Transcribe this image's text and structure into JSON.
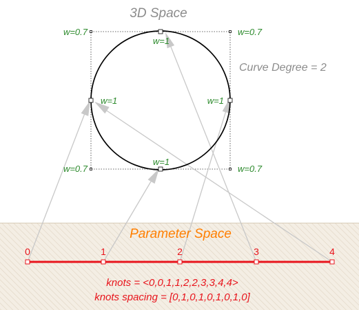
{
  "space_3d": {
    "title": "3D Space",
    "curve_degree": "Curve Degree = 2",
    "weights": {
      "top_left": "w=0.7",
      "top_center": "w=1",
      "top_right": "w=0.7",
      "mid_left": "w=1",
      "mid_right": "w=1",
      "bottom_left": "w=0.7",
      "bottom_center": "w=1",
      "bottom_right": "w=0.7"
    }
  },
  "parameter_space": {
    "title": "Parameter Space",
    "ticks": [
      "0",
      "1",
      "2",
      "3",
      "4"
    ],
    "knots": "knots = <0,0,1,1,2,2,3,3,4,4>",
    "knots_spacing": "knots spacing = [0,1,0,1,0,1,0,1,0]"
  },
  "colors": {
    "title_gray": "#8c8c8c",
    "weight_green": "#2e8b2e",
    "param_orange": "#ff7f00",
    "knot_red": "#e8141c",
    "arrow_gray": "#c4c4c4",
    "hatch_bg": "#f4eee4",
    "hatch_line": "#e1d6c5"
  }
}
